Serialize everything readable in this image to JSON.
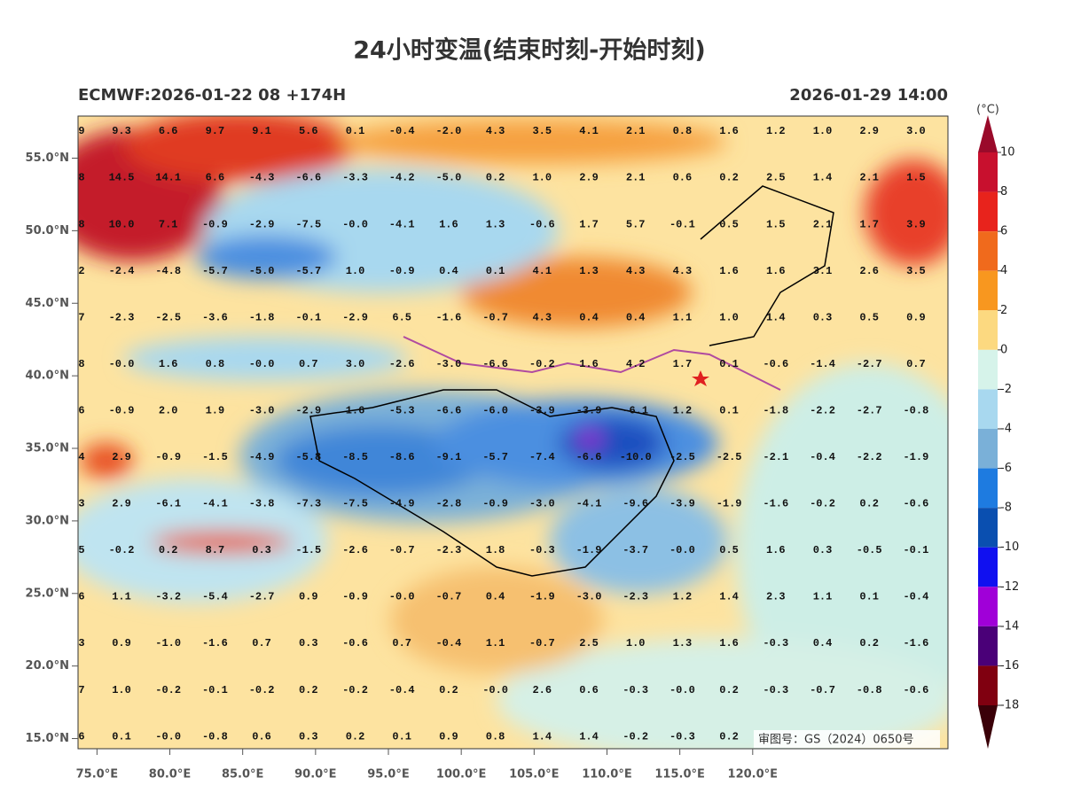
{
  "header": {
    "title": "24小时变温(结束时刻-开始时刻)",
    "left": "ECMWF:2026-01-22 08 +174H",
    "right": "2026-01-29 14:00"
  },
  "map": {
    "xlim": [
      73.7,
      133.4
    ],
    "ylim": [
      14.3,
      57.9
    ],
    "xticks": [
      {
        "value": 75,
        "label": "75.0°E"
      },
      {
        "value": 80,
        "label": "80.0°E"
      },
      {
        "value": 85,
        "label": "85.0°E"
      },
      {
        "value": 90,
        "label": "90.0°E"
      },
      {
        "value": 95,
        "label": "95.0°E"
      },
      {
        "value": 100,
        "label": "100.0°E"
      },
      {
        "value": 105,
        "label": "105.0°E"
      },
      {
        "value": 110,
        "label": "110.0°E"
      },
      {
        "value": 115,
        "label": "115.0°E"
      },
      {
        "value": 120,
        "label": "120.0°E"
      }
    ],
    "yticks": [
      {
        "value": 55,
        "label": "55.0°N"
      },
      {
        "value": 50,
        "label": "50.0°N"
      },
      {
        "value": 45,
        "label": "45.0°N"
      },
      {
        "value": 40,
        "label": "40.0°N"
      },
      {
        "value": 35,
        "label": "35.0°N"
      },
      {
        "value": 30,
        "label": "30.0°N"
      },
      {
        "value": 25,
        "label": "25.0°N"
      },
      {
        "value": 20,
        "label": "20.0°N"
      },
      {
        "value": 15,
        "label": "15.0°N"
      }
    ],
    "grid_values": [
      [
        "9",
        "9.3",
        "6.6",
        "9.7",
        "9.1",
        "5.6",
        "0.1",
        "-0.4",
        "-2.0",
        "4.3",
        "3.5",
        "4.1",
        "2.1",
        "0.8",
        "1.6",
        "1.2",
        "1.0",
        "2.9",
        "3.0"
      ],
      [
        "8",
        "14.5",
        "14.1",
        "6.6",
        "-4.3",
        "-6.6",
        "-3.3",
        "-4.2",
        "-5.0",
        "0.2",
        "1.0",
        "2.9",
        "2.1",
        "0.6",
        "0.2",
        "2.5",
        "1.4",
        "2.1",
        "1.5"
      ],
      [
        "8",
        "10.0",
        "7.1",
        "-0.9",
        "-2.9",
        "-7.5",
        "-0.0",
        "-4.1",
        "1.6",
        "1.3",
        "-0.6",
        "1.7",
        "5.7",
        "-0.1",
        "0.5",
        "1.5",
        "2.1",
        "1.7",
        "3.9"
      ],
      [
        "2",
        "-2.4",
        "-4.8",
        "-5.7",
        "-5.0",
        "-5.7",
        "1.0",
        "-0.9",
        "0.4",
        "0.1",
        "4.1",
        "1.3",
        "4.3",
        "4.3",
        "1.6",
        "1.6",
        "3.1",
        "2.6",
        "3.5"
      ],
      [
        "7",
        "-2.3",
        "-2.5",
        "-3.6",
        "-1.8",
        "-0.1",
        "-2.9",
        "6.5",
        "-1.6",
        "-0.7",
        "4.3",
        "0.4",
        "0.4",
        "1.1",
        "1.0",
        "1.4",
        "0.3",
        "0.5",
        "0.9"
      ],
      [
        "8",
        "-0.0",
        "1.6",
        "0.8",
        "-0.0",
        "0.7",
        "3.0",
        "-2.6",
        "-3.0",
        "-6.6",
        "-0.2",
        "1.6",
        "4.2",
        "1.7",
        "0.1",
        "-0.6",
        "-1.4",
        "-2.7",
        "0.7"
      ],
      [
        "6",
        "-0.9",
        "2.0",
        "1.9",
        "-3.0",
        "-2.9",
        "1.6",
        "-5.3",
        "-6.6",
        "-6.0",
        "-3.9",
        "-3.9",
        "-6.1",
        "1.2",
        "0.1",
        "-1.8",
        "-2.2",
        "-2.7",
        "-0.8"
      ],
      [
        "4",
        "2.9",
        "-0.9",
        "-1.5",
        "-4.9",
        "-5.8",
        "-8.5",
        "-8.6",
        "-9.1",
        "-5.7",
        "-7.4",
        "-6.6",
        "-10.0",
        "-2.5",
        "-2.5",
        "-2.1",
        "-0.4",
        "-2.2",
        "-1.9"
      ],
      [
        "3",
        "2.9",
        "-6.1",
        "-4.1",
        "-3.8",
        "-7.3",
        "-7.5",
        "-4.9",
        "-2.8",
        "-0.9",
        "-3.0",
        "-4.1",
        "-9.6",
        "-3.9",
        "-1.9",
        "-1.6",
        "-0.2",
        "0.2",
        "-0.6"
      ],
      [
        "5",
        "-0.2",
        "0.2",
        "8.7",
        "0.3",
        "-1.5",
        "-2.6",
        "-0.7",
        "-2.3",
        "1.8",
        "-0.3",
        "-1.9",
        "-3.7",
        "-0.0",
        "0.5",
        "1.6",
        "0.3",
        "-0.5",
        "-0.1"
      ],
      [
        "6",
        "1.1",
        "-3.2",
        "-5.4",
        "-2.7",
        "0.9",
        "-0.9",
        "-0.0",
        "-0.7",
        "0.4",
        "-1.9",
        "-3.0",
        "-2.3",
        "1.2",
        "1.4",
        "2.3",
        "1.1",
        "0.1",
        "-0.4"
      ],
      [
        "3",
        "0.9",
        "-1.0",
        "-1.6",
        "0.7",
        "0.3",
        "-0.6",
        "0.7",
        "-0.4",
        "1.1",
        "-0.7",
        "2.5",
        "1.0",
        "1.3",
        "1.6",
        "-0.3",
        "0.4",
        "0.2",
        "-1.6"
      ],
      [
        "7",
        "1.0",
        "-0.2",
        "-0.1",
        "-0.2",
        "0.2",
        "-0.2",
        "-0.4",
        "0.2",
        "-0.0",
        "2.6",
        "0.6",
        "-0.3",
        "-0.0",
        "0.2",
        "-0.3",
        "-0.7",
        "-0.8",
        "-0.6"
      ],
      [
        "6",
        "0.1",
        "-0.0",
        "-0.8",
        "0.6",
        "0.3",
        "0.2",
        "0.1",
        "0.9",
        "0.8",
        "1.4",
        "1.4",
        "-0.2",
        "-0.3",
        "0.2"
      ]
    ],
    "approval": "审图号：GS（2024）0650号"
  },
  "colorbar": {
    "unit": "(°C)",
    "levels": [
      10,
      8,
      6,
      4,
      2,
      0,
      -2,
      -4,
      -6,
      -8,
      -10,
      -12,
      -14,
      -16,
      -18
    ],
    "colors": [
      "#9a0a2a",
      "#c8102e",
      "#e8231c",
      "#f06a1c",
      "#f8971f",
      "#fcd980",
      "#d6f3ea",
      "#a8d8ef",
      "#7ab0d8",
      "#1e7be0",
      "#0a4fb0",
      "#1010f0",
      "#a000d8",
      "#4a0078",
      "#800010",
      "#3a0008"
    ]
  }
}
